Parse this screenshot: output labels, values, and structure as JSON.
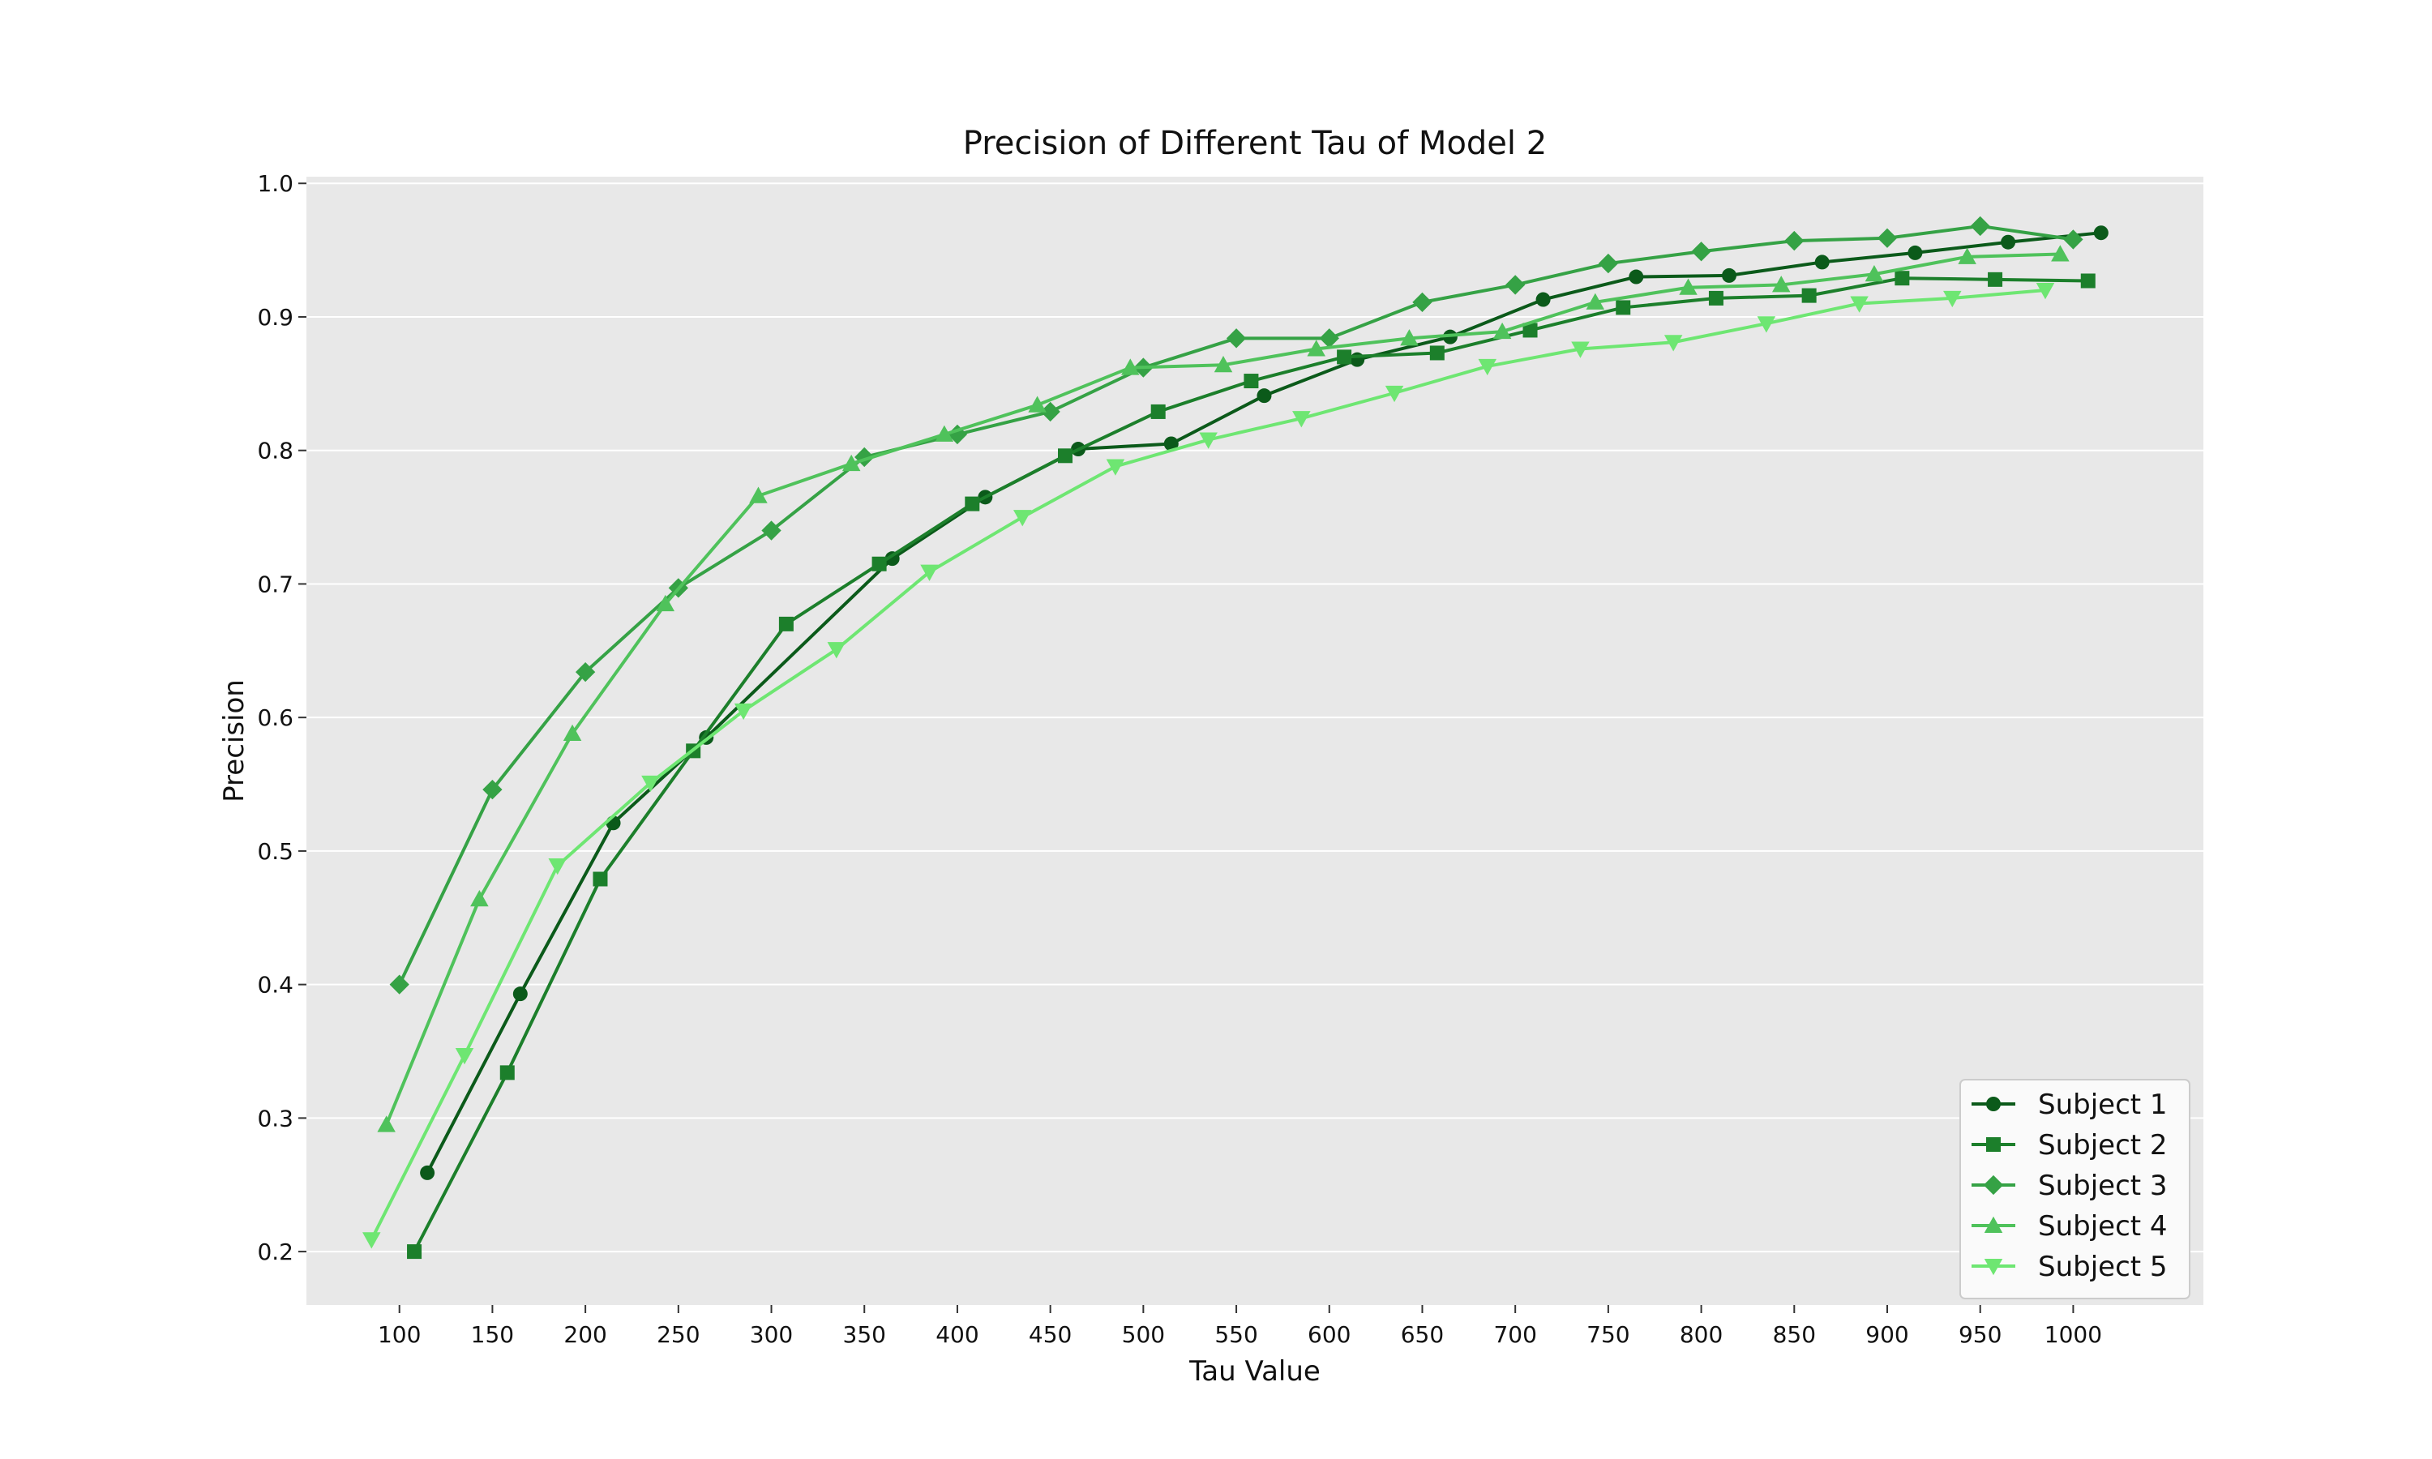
{
  "chart_data": {
    "type": "line",
    "title": "Precision of Different Tau of Model 2",
    "xlabel": "Tau Value",
    "ylabel": "Precision",
    "xlim": [
      50,
      1070
    ],
    "ylim": [
      0.16,
      1.005
    ],
    "x_ticks": [
      100,
      150,
      200,
      250,
      300,
      350,
      400,
      450,
      500,
      550,
      600,
      650,
      700,
      750,
      800,
      850,
      900,
      950,
      1000
    ],
    "y_ticks": [
      0.2,
      0.3,
      0.4,
      0.5,
      0.6,
      0.7,
      0.8,
      0.9,
      1.0
    ],
    "x_tick_labels": [
      "100",
      "150",
      "200",
      "250",
      "300",
      "350",
      "400",
      "450",
      "500",
      "550",
      "600",
      "650",
      "700",
      "750",
      "800",
      "850",
      "900",
      "950",
      "1000"
    ],
    "y_tick_labels": [
      "0.2",
      "0.3",
      "0.4",
      "0.5",
      "0.6",
      "0.7",
      "0.8",
      "0.9",
      "1.0"
    ],
    "grid": true,
    "legend_position": "lower-right",
    "background": "#e8e8e8",
    "series": [
      {
        "name": "Subject 1",
        "color": "#0b5a1a",
        "marker": "circle",
        "x": [
          115,
          165,
          215,
          265,
          365,
          415,
          465,
          515,
          565,
          615,
          665,
          715,
          765,
          815,
          865,
          915,
          965,
          1015
        ],
        "y": [
          0.259,
          0.393,
          0.521,
          0.585,
          0.719,
          0.765,
          0.801,
          0.805,
          0.841,
          0.868,
          0.885,
          0.913,
          0.93,
          0.931,
          0.941,
          0.948,
          0.956,
          0.963
        ]
      },
      {
        "name": "Subject 2",
        "color": "#1c7f2b",
        "marker": "square",
        "x": [
          108,
          158,
          208,
          258,
          308,
          358,
          408,
          458,
          508,
          558,
          608,
          658,
          708,
          758,
          808,
          858,
          908,
          958,
          1008
        ],
        "y": [
          0.2,
          0.334,
          0.479,
          0.575,
          0.67,
          0.715,
          0.76,
          0.796,
          0.829,
          0.852,
          0.87,
          0.873,
          0.89,
          0.907,
          0.914,
          0.916,
          0.929,
          0.928,
          0.927
        ]
      },
      {
        "name": "Subject 3",
        "color": "#35a245",
        "marker": "diamond",
        "x": [
          100,
          150,
          200,
          250,
          300,
          350,
          400,
          450,
          500,
          550,
          600,
          650,
          700,
          750,
          800,
          850,
          900,
          950,
          1000
        ],
        "y": [
          0.4,
          0.546,
          0.634,
          0.697,
          0.74,
          0.795,
          0.812,
          0.829,
          0.862,
          0.884,
          0.884,
          0.911,
          0.924,
          0.94,
          0.949,
          0.957,
          0.959,
          0.968,
          0.958
        ]
      },
      {
        "name": "Subject 4",
        "color": "#4fc25b",
        "marker": "triangle-up",
        "x": [
          93,
          143,
          193,
          243,
          293,
          343,
          393,
          443,
          493,
          543,
          593,
          643,
          693,
          743,
          793,
          843,
          893,
          943,
          993
        ],
        "y": [
          0.295,
          0.464,
          0.588,
          0.685,
          0.766,
          0.79,
          0.812,
          0.834,
          0.862,
          0.864,
          0.876,
          0.884,
          0.889,
          0.911,
          0.922,
          0.924,
          0.932,
          0.945,
          0.947
        ]
      },
      {
        "name": "Subject 5",
        "color": "#6ee672",
        "marker": "triangle-down",
        "x": [
          85,
          135,
          185,
          235,
          285,
          335,
          385,
          435,
          485,
          535,
          585,
          635,
          685,
          735,
          785,
          835,
          885,
          935,
          985
        ],
        "y": [
          0.209,
          0.347,
          0.489,
          0.551,
          0.605,
          0.651,
          0.709,
          0.75,
          0.788,
          0.808,
          0.824,
          0.843,
          0.863,
          0.876,
          0.881,
          0.895,
          0.91,
          0.914,
          0.92
        ]
      }
    ]
  }
}
